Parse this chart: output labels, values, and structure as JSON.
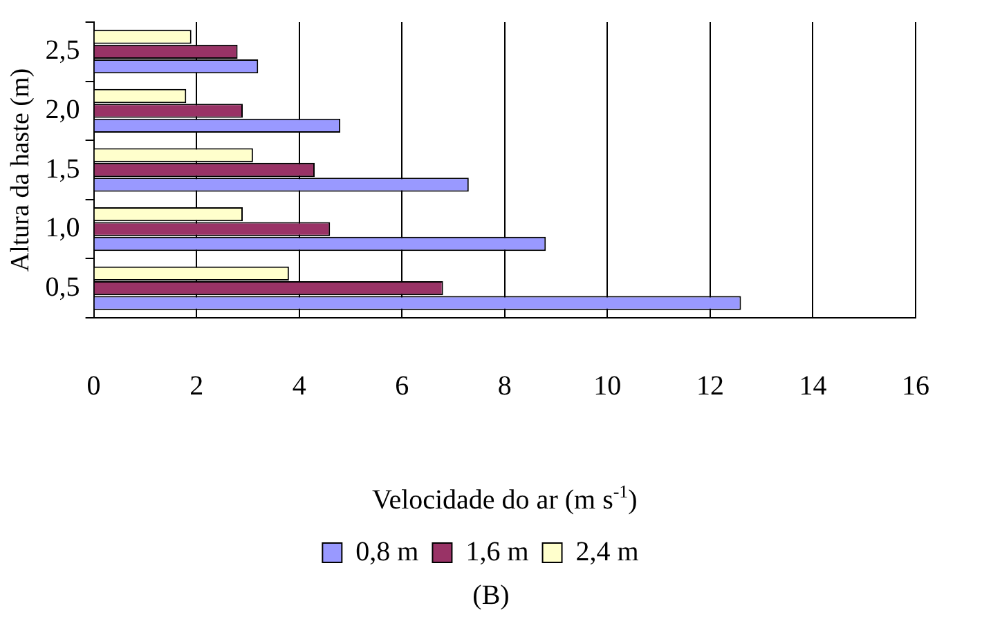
{
  "chart_data": {
    "type": "bar",
    "orientation": "horizontal",
    "xlabel": "Velocidade do ar (m s$^{-1}$)",
    "ylabel": "Altura da haste (m)",
    "annotations": [
      "(B)"
    ],
    "categories": [
      "2,5",
      "2,0",
      "1,5",
      "1,0",
      "0,5"
    ],
    "series": [
      {
        "name": "0,8 m",
        "color": "#9999ff",
        "values": [
          3.2,
          4.8,
          7.3,
          8.8,
          12.6
        ]
      },
      {
        "name": "1,6 m",
        "color": "#993366",
        "values": [
          2.8,
          2.9,
          4.3,
          4.6,
          6.8
        ]
      },
      {
        "name": "2,4 m",
        "color": "#ffffcc",
        "values": [
          1.9,
          1.8,
          3.1,
          2.9,
          3.8
        ]
      }
    ],
    "xlim": [
      0,
      16
    ],
    "xticks": [
      0,
      2,
      4,
      6,
      8,
      10,
      12,
      14,
      16
    ],
    "grid": "x",
    "legend": "bottom"
  }
}
